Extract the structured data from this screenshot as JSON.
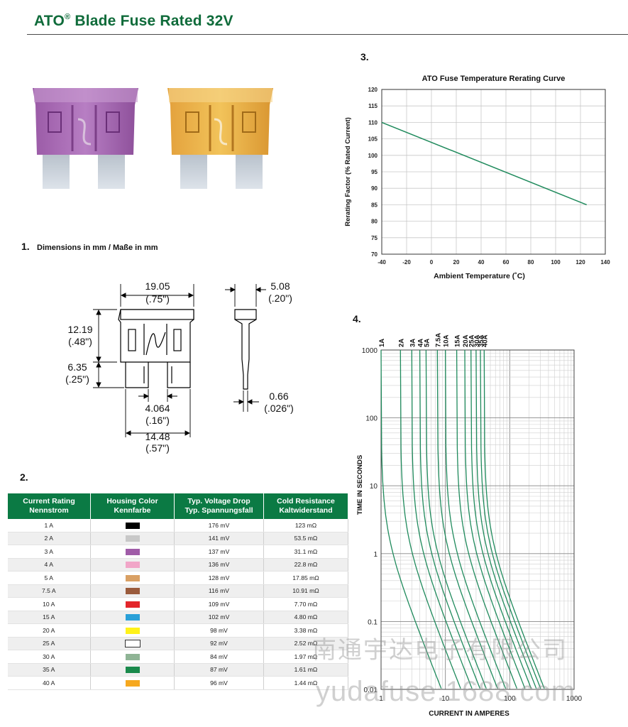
{
  "header": {
    "title_main": "ATO",
    "title_reg": "®",
    "title_rest": " Blade Fuse Rated 32V"
  },
  "sections": {
    "dims": {
      "num": "1.",
      "caption": "Dimensions in mm / Maße in mm"
    },
    "table": {
      "num": "2."
    },
    "rerating": {
      "num": "3."
    },
    "timecurrent": {
      "num": "4."
    }
  },
  "dimensions": {
    "width_mm": "19.05",
    "width_in": "(.75\")",
    "depth_mm": "5.08",
    "depth_in": "(.20\")",
    "body_h_mm": "12.19",
    "body_h_in": "(.48\")",
    "blade_h_mm": "6.35",
    "blade_h_in": "(.25\")",
    "blade_gap_mm": "4.064",
    "blade_gap_in": "(.16\")",
    "blade_span_mm": "14.48",
    "blade_span_in": "(.57\")",
    "blade_t_mm": "0.66",
    "blade_t_in": "(.026\")"
  },
  "table": {
    "headers": [
      {
        "l1": "Current Rating",
        "l2": "Nennstrom"
      },
      {
        "l1": "Housing Color",
        "l2": "Kennfarbe"
      },
      {
        "l1": "Typ. Voltage Drop",
        "l2": "Typ. Spannungsfall"
      },
      {
        "l1": "Cold Resistance",
        "l2": "Kaltwiderstand"
      }
    ],
    "rows": [
      {
        "rating": "1 A",
        "color": "#000000",
        "drop": "176 mV",
        "res": "123 mΩ"
      },
      {
        "rating": "2 A",
        "color": "#c8c8c8",
        "drop": "141 mV",
        "res": "53.5 mΩ"
      },
      {
        "rating": "3 A",
        "color": "#a05ca8",
        "drop": "137 mV",
        "res": "31.1 mΩ"
      },
      {
        "rating": "4 A",
        "color": "#f1a6c8",
        "drop": "136 mV",
        "res": "22.8 mΩ"
      },
      {
        "rating": "5 A",
        "color": "#d9a064",
        "drop": "128 mV",
        "res": "17.85 mΩ"
      },
      {
        "rating": "7.5 A",
        "color": "#9a5b3c",
        "drop": "116 mV",
        "res": "10.91 mΩ"
      },
      {
        "rating": "10 A",
        "color": "#e3262b",
        "drop": "109 mV",
        "res": "7.70 mΩ"
      },
      {
        "rating": "15 A",
        "color": "#2aa0d8",
        "drop": "102 mV",
        "res": "4.80 mΩ"
      },
      {
        "rating": "20 A",
        "color": "#fff21a",
        "drop": "98 mV",
        "res": "3.38 mΩ"
      },
      {
        "rating": "25 A",
        "color": "#ffffff",
        "drop": "92 mV",
        "res": "2.52 mΩ"
      },
      {
        "rating": "30 A",
        "color": "#8fb495",
        "drop": "84 mV",
        "res": "1.97 mΩ"
      },
      {
        "rating": "35 A",
        "color": "#1a8a4c",
        "drop": "87 mV",
        "res": "1.61 mΩ"
      },
      {
        "rating": "40 A",
        "color": "#f6a81f",
        "drop": "96 mV",
        "res": "1.44 mΩ"
      }
    ]
  },
  "chart_data": [
    {
      "type": "line",
      "title": "ATO Fuse Temperature Rerating Curve",
      "xlabel": "Ambient Temperature (˚C)",
      "ylabel": "Rerating Factor (% Rated Current)",
      "xlim": [
        -40,
        140
      ],
      "ylim": [
        70,
        120
      ],
      "xticks": [
        -40,
        -20,
        0,
        20,
        40,
        60,
        80,
        100,
        120,
        140
      ],
      "yticks": [
        70,
        75,
        80,
        85,
        90,
        95,
        100,
        105,
        110,
        115,
        120
      ],
      "grid": true,
      "line_color": "#1f8a5c",
      "series": [
        {
          "x": [
            -40,
            125
          ],
          "y": [
            110,
            85
          ]
        }
      ]
    },
    {
      "type": "line",
      "title": "",
      "xlabel": "CURRENT IN AMPERES",
      "ylabel": "TIME IN SECONDS",
      "x_scale": "log",
      "y_scale": "log",
      "xlim": [
        1,
        1000
      ],
      "ylim": [
        0.01,
        1000
      ],
      "xtick_labels": [
        "1",
        "10",
        "100",
        "1000"
      ],
      "ytick_labels": [
        "0.01",
        "0.1",
        "1",
        "10",
        "100",
        "1000"
      ],
      "grid": true,
      "line_color": "#1f8a5c",
      "series": [
        {
          "name": "1A",
          "rating": 1
        },
        {
          "name": "2A",
          "rating": 2
        },
        {
          "name": "3A",
          "rating": 3
        },
        {
          "name": "4A",
          "rating": 4
        },
        {
          "name": "5A",
          "rating": 5
        },
        {
          "name": "7.5A",
          "rating": 7.5
        },
        {
          "name": "10A",
          "rating": 10
        },
        {
          "name": "15A",
          "rating": 15
        },
        {
          "name": "20A",
          "rating": 20
        },
        {
          "name": "25A",
          "rating": 25
        },
        {
          "name": "30A",
          "rating": 30
        },
        {
          "name": "35A",
          "rating": 35
        },
        {
          "name": "40A",
          "rating": 40
        }
      ]
    }
  ],
  "watermark": {
    "line1": "南通宇达电子有限公司",
    "line2": "yudafuse.1688.com"
  }
}
